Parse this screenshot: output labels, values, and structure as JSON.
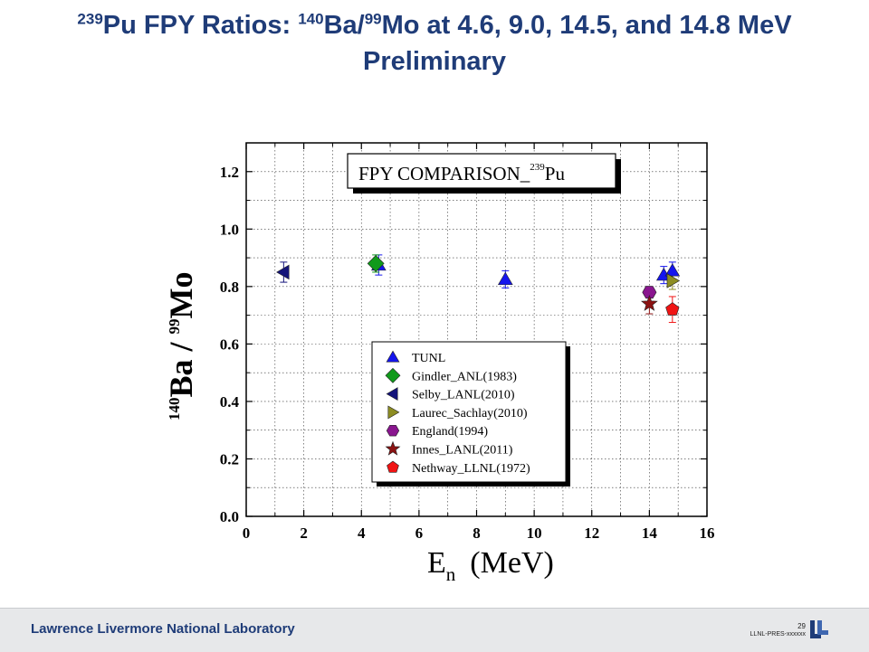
{
  "slide": {
    "title_pre": "239",
    "title_a": "Pu FPY Ratios: ",
    "title_sup_ba": "140",
    "title_b": "Ba/",
    "title_sup_mo": "99",
    "title_c": "Mo at 4.6, 9.0, 14.5, and 14.8 MeV",
    "title_line2": "Preliminary"
  },
  "footer": {
    "lab_name": "Lawrence Livermore National Laboratory",
    "page_number": "29",
    "doc_id": "LLNL-PRES-xxxxxx",
    "logo_icon": "llnl-logo-icon",
    "colors": {
      "brand": "#1f3c78",
      "bar": "#e7e8ea"
    }
  },
  "chart_data": {
    "type": "scatter",
    "title": "FPY COMPARISON_",
    "title_sup": "239",
    "title_tail": "Pu",
    "xlabel_main": "E",
    "xlabel_sub": "n",
    "xlabel_unit": "(MeV)",
    "ylabel_sup1": "140",
    "ylabel_part1": "Ba / ",
    "ylabel_sup2": "99",
    "ylabel_part2": "Mo",
    "xlim": [
      0,
      16
    ],
    "ylim": [
      0,
      1.3
    ],
    "xticks": [
      "0",
      "2",
      "4",
      "6",
      "8",
      "10",
      "12",
      "14",
      "16"
    ],
    "yticks": [
      "0.0",
      "0.2",
      "0.4",
      "0.6",
      "0.8",
      "1.0",
      "1.2"
    ],
    "ytick_values": [
      0,
      0.2,
      0.4,
      0.6,
      0.8,
      1.0,
      1.2
    ],
    "xtick_values": [
      0,
      2,
      4,
      6,
      8,
      10,
      12,
      14,
      16
    ],
    "grid": true,
    "legend_position": "bottom-center",
    "series": [
      {
        "name": "TUNL",
        "marker": "triangle-up",
        "color": "#1515ee",
        "points": [
          {
            "x": 4.6,
            "y": 0.875,
            "err": 0.035
          },
          {
            "x": 9.0,
            "y": 0.825,
            "err": 0.03
          },
          {
            "x": 14.5,
            "y": 0.84,
            "err": 0.03
          },
          {
            "x": 14.8,
            "y": 0.855,
            "err": 0.03
          }
        ]
      },
      {
        "name": "Gindler_ANL(1983)",
        "marker": "diamond",
        "color": "#119a1b",
        "points": [
          {
            "x": 4.5,
            "y": 0.88,
            "err": 0.03
          }
        ]
      },
      {
        "name": "Selby_LANL(2010)",
        "marker": "triangle-left",
        "color": "#14147a",
        "points": [
          {
            "x": 1.3,
            "y": 0.85,
            "err": 0.035
          }
        ]
      },
      {
        "name": "Laurec_Sachlay(2010)",
        "marker": "triangle-right",
        "color": "#8d8d22",
        "points": [
          {
            "x": 14.8,
            "y": 0.82,
            "err": 0.03
          }
        ]
      },
      {
        "name": "England(1994)",
        "marker": "hexagon",
        "color": "#8a168f",
        "points": [
          {
            "x": 14.0,
            "y": 0.78,
            "err": 0.02
          }
        ]
      },
      {
        "name": "Innes_LANL(2011)",
        "marker": "star",
        "color": "#8b1212",
        "points": [
          {
            "x": 14.0,
            "y": 0.74,
            "err": 0.035
          }
        ]
      },
      {
        "name": "Nethway_LLNL(1972)",
        "marker": "pentagon",
        "color": "#f01414",
        "points": [
          {
            "x": 14.8,
            "y": 0.72,
            "err": 0.045
          }
        ]
      }
    ]
  }
}
